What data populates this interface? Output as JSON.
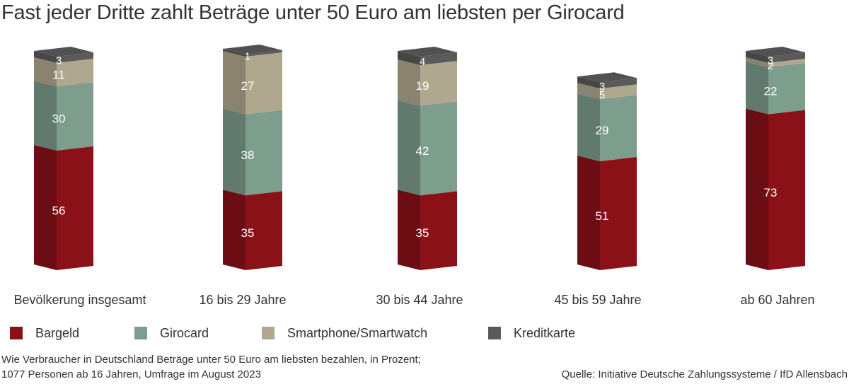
{
  "title": "Fast jeder Dritte zahlt Beträge unter 50 Euro am liebsten per Girocard",
  "footnote_line1": "Wie Verbraucher in Deutschland Beträge unter 50 Euro am liebsten bezahlen, in Prozent;",
  "footnote_line2": "1077 Personen ab 16 Jahren, Umfrage im August 2023",
  "source": "Quelle: Initiative Deutsche Zahlungssysteme / IfD Allensbach",
  "legend": [
    {
      "label": "Bargeld",
      "color": "#8b1119"
    },
    {
      "label": "Girocard",
      "color": "#7d9d8d"
    },
    {
      "label": "Smartphone/Smartwatch",
      "color": "#b0a88e"
    },
    {
      "label": "Kreditkarte",
      "color": "#5a5a5a"
    }
  ],
  "chart_data": {
    "type": "bar",
    "stacked": true,
    "three_d": true,
    "categories": [
      "Bevölkerung insgesamt",
      "16 bis 29 Jahre",
      "30 bis 44 Jahre",
      "45 bis 59 Jahre",
      "ab 60 Jahren"
    ],
    "series": [
      {
        "name": "Bargeld",
        "values": [
          56,
          35,
          35,
          51,
          73
        ],
        "color": "#8b1119"
      },
      {
        "name": "Girocard",
        "values": [
          30,
          38,
          42,
          29,
          22
        ],
        "color": "#7d9d8d"
      },
      {
        "name": "Smartphone/Smartwatch",
        "values": [
          11,
          27,
          19,
          5,
          2
        ],
        "color": "#b0a88e"
      },
      {
        "name": "Kreditkarte",
        "values": [
          3,
          1,
          4,
          3,
          3
        ],
        "color": "#5a5a5a"
      }
    ],
    "title": "Fast jeder Dritte zahlt Beträge unter 50 Euro am liebsten per Girocard",
    "xlabel": "",
    "ylabel": "",
    "grid": false,
    "legend_position": "bottom"
  }
}
